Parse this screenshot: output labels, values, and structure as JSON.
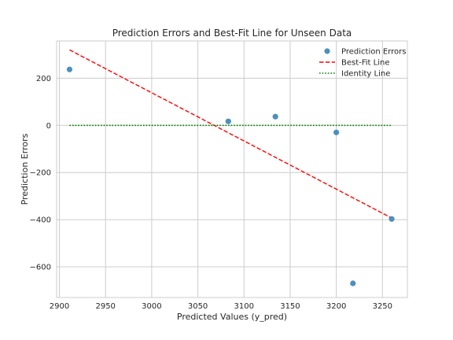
{
  "chart_data": {
    "type": "scatter",
    "title": "Prediction Errors and Best-Fit Line for Unseen Data",
    "xlabel": "Predicted Values (y_pred)",
    "ylabel": "Prediction Errors",
    "xlim": [
      2897,
      3277
    ],
    "ylim": [
      -730,
      358
    ],
    "xticks": [
      2900,
      2950,
      3000,
      3050,
      3100,
      3150,
      3200,
      3250
    ],
    "yticks": [
      200,
      0,
      -200,
      -400,
      -600
    ],
    "ytick_labels": [
      "200",
      "0",
      "−200",
      "−400",
      "−600"
    ],
    "grid": true,
    "legend_position": "top-right",
    "series": [
      {
        "name": "Prediction Errors",
        "kind": "scatter",
        "color": "#4c8fbd",
        "x": [
          2911,
          3083,
          3134,
          3200,
          3218,
          3260
        ],
        "y": [
          237,
          17,
          37,
          -30,
          -670,
          -397
        ]
      },
      {
        "name": "Best-Fit Line",
        "kind": "line",
        "style": "dashed",
        "color": "#ff0000",
        "x": [
          2911,
          3260
        ],
        "y": [
          320,
          -393
        ]
      },
      {
        "name": "Identity Line",
        "kind": "line",
        "style": "dotted",
        "color": "#008000",
        "x": [
          2911,
          3260
        ],
        "y": [
          0,
          0
        ]
      }
    ]
  }
}
